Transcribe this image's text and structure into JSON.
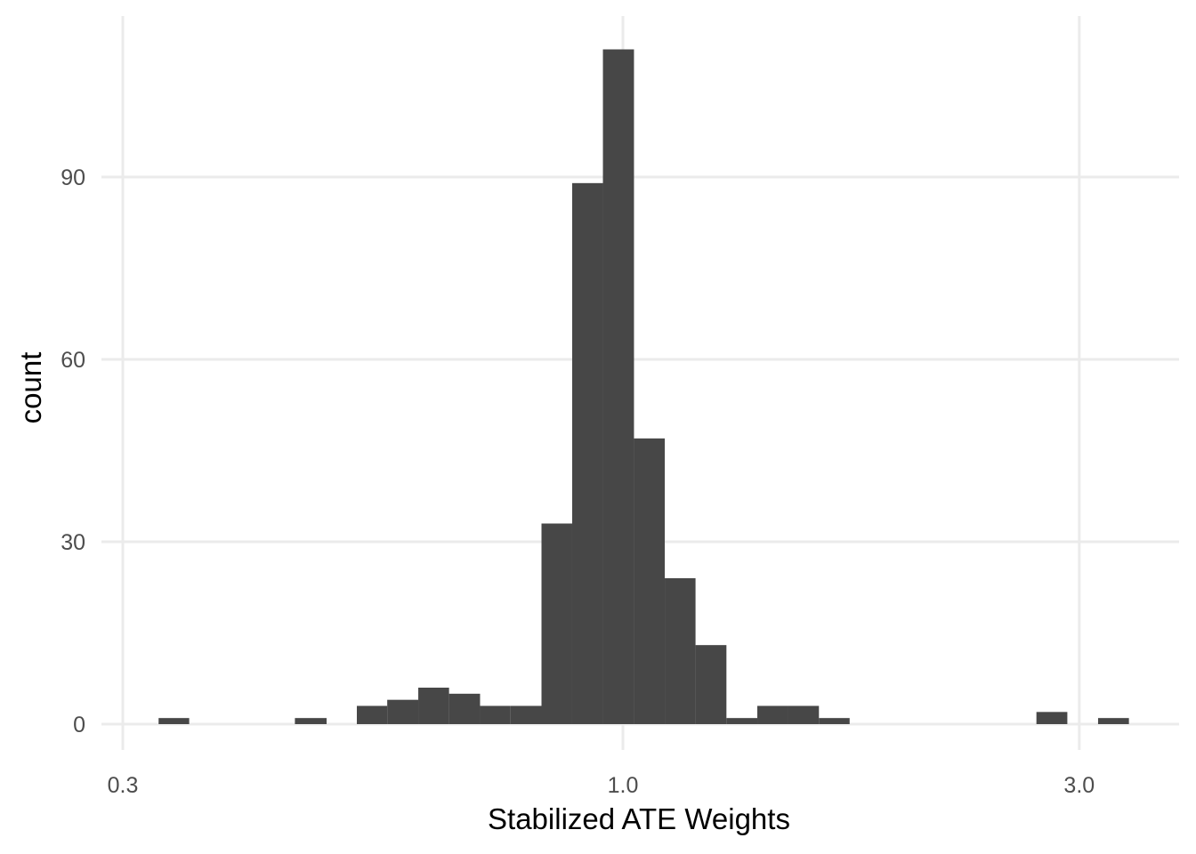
{
  "chart_data": {
    "type": "bar",
    "subtype": "histogram",
    "title": "",
    "xlabel": "Stabilized ATE Weights",
    "ylabel": "count",
    "x_scale": "log10",
    "x_range": [
      0.3,
      3.6
    ],
    "ylim": [
      -3.8,
      116.5
    ],
    "grid": true,
    "theme": "minimal",
    "bar_color": "#474747",
    "grid_color": "#ebebeb",
    "x_ticks": [
      {
        "value": 0.3,
        "label": "0.3"
      },
      {
        "value": 1.0,
        "label": "1.0"
      },
      {
        "value": 3.0,
        "label": "3.0"
      }
    ],
    "y_ticks": [
      {
        "value": 0,
        "label": "0"
      },
      {
        "value": 30,
        "label": "30"
      },
      {
        "value": 60,
        "label": "60"
      },
      {
        "value": 90,
        "label": "90"
      }
    ],
    "bins": [
      {
        "x0": 0.327,
        "x1": 0.352,
        "count": 1
      },
      {
        "x0": 0.454,
        "x1": 0.49,
        "count": 1
      },
      {
        "x0": 0.527,
        "x1": 0.567,
        "count": 3
      },
      {
        "x0": 0.567,
        "x1": 0.611,
        "count": 4
      },
      {
        "x0": 0.611,
        "x1": 0.658,
        "count": 6
      },
      {
        "x0": 0.658,
        "x1": 0.709,
        "count": 5
      },
      {
        "x0": 0.709,
        "x1": 0.763,
        "count": 3
      },
      {
        "x0": 0.763,
        "x1": 0.822,
        "count": 3
      },
      {
        "x0": 0.822,
        "x1": 0.885,
        "count": 33
      },
      {
        "x0": 0.885,
        "x1": 0.953,
        "count": 89
      },
      {
        "x0": 0.953,
        "x1": 1.027,
        "count": 111
      },
      {
        "x0": 1.027,
        "x1": 1.106,
        "count": 47
      },
      {
        "x0": 1.106,
        "x1": 1.191,
        "count": 24
      },
      {
        "x0": 1.191,
        "x1": 1.283,
        "count": 13
      },
      {
        "x0": 1.283,
        "x1": 1.382,
        "count": 1
      },
      {
        "x0": 1.382,
        "x1": 1.488,
        "count": 3
      },
      {
        "x0": 1.488,
        "x1": 1.603,
        "count": 3
      },
      {
        "x0": 1.603,
        "x1": 1.726,
        "count": 1
      },
      {
        "x0": 2.706,
        "x1": 2.915,
        "count": 2
      },
      {
        "x0": 3.139,
        "x1": 3.381,
        "count": 1
      }
    ]
  }
}
